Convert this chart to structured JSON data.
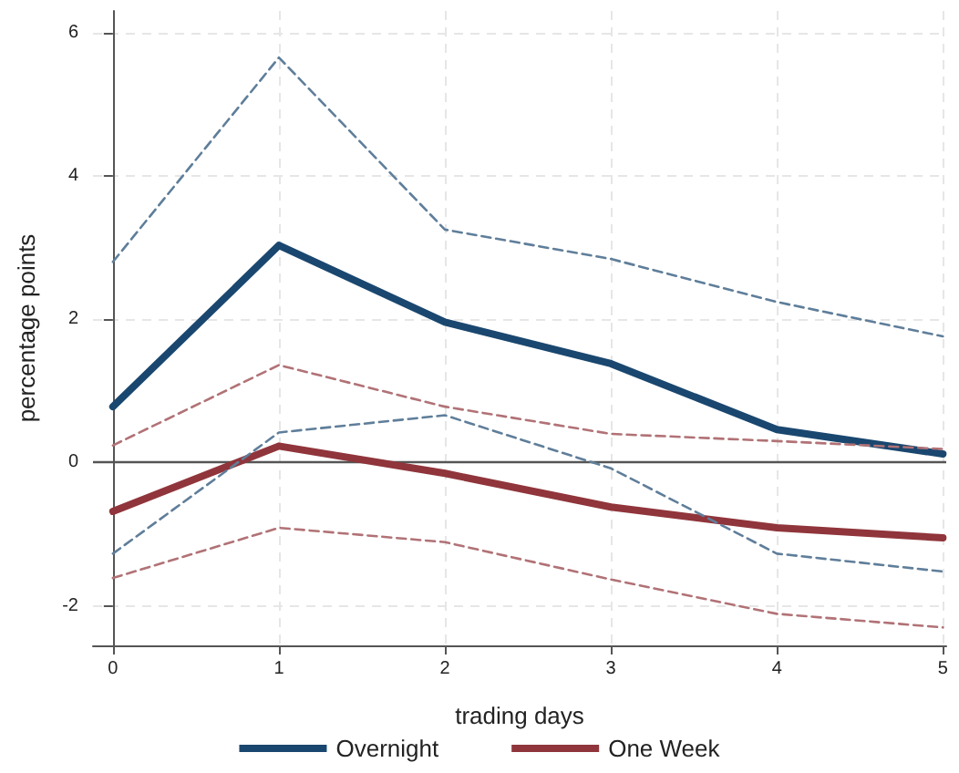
{
  "chart_data": {
    "type": "line",
    "xlabel": "trading days",
    "ylabel": "percentage points",
    "x": [
      0,
      1,
      2,
      3,
      4,
      5
    ],
    "series": [
      {
        "name": "Overnight",
        "color": "#1a476f",
        "line_style": "solid",
        "values": [
          0.78,
          3.03,
          1.96,
          1.38,
          0.46,
          0.12
        ]
      },
      {
        "color": "#5f7e9a",
        "line_style": "dashed",
        "values": [
          2.8,
          5.65,
          3.25,
          2.84,
          2.24,
          1.76
        ]
      },
      {
        "color": "#5f7e9a",
        "line_style": "dashed",
        "values": [
          -1.27,
          0.42,
          0.66,
          -0.08,
          -1.27,
          -1.52
        ]
      },
      {
        "name": "One Week",
        "color": "#90353b",
        "line_style": "solid",
        "values": [
          -0.68,
          0.23,
          -0.15,
          -0.62,
          -0.91,
          -1.05
        ]
      },
      {
        "color": "#b17276",
        "line_style": "dashed",
        "values": [
          0.24,
          1.36,
          0.78,
          0.4,
          0.3,
          0.19
        ]
      },
      {
        "color": "#b17276",
        "line_style": "dashed",
        "values": [
          -1.61,
          -0.91,
          -1.11,
          -1.63,
          -2.11,
          -2.3
        ]
      }
    ],
    "xlim": [
      -0.12,
      5.02
    ],
    "xticks": [
      0,
      1,
      2,
      3,
      4,
      5
    ],
    "ylim": [
      -2.55,
      6.3
    ],
    "yticks": [
      -2,
      0,
      2,
      4,
      6
    ],
    "ref_lines": [
      {
        "axis": "y",
        "value": 0,
        "color": "#555555"
      }
    ],
    "grid": true,
    "legend": "bottom",
    "marker": "none"
  }
}
